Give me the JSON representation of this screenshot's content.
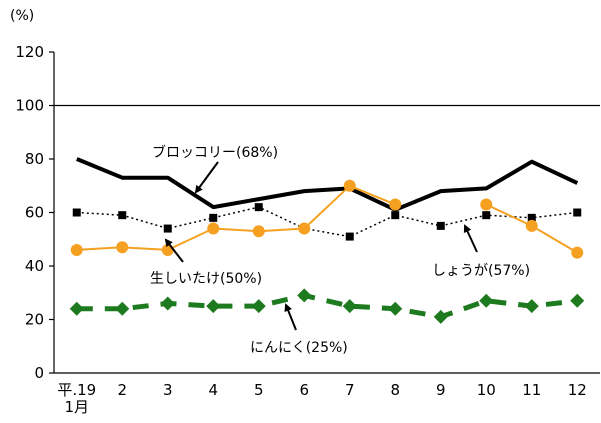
{
  "chart_data": {
    "type": "line",
    "unit_label": "(%)",
    "categories": [
      "平.19\n1月",
      "2",
      "3",
      "4",
      "5",
      "6",
      "7",
      "8",
      "9",
      "10",
      "11",
      "12"
    ],
    "ylim": [
      0,
      120
    ],
    "yticks": [
      0,
      20,
      40,
      60,
      80,
      100,
      120
    ],
    "reference_line": 100,
    "series": [
      {
        "name": "ブロッコリー(68%)",
        "color": "#000000",
        "style": "solid-thick",
        "marker": "none",
        "values": [
          80,
          73,
          73,
          62,
          65,
          68,
          69,
          61,
          68,
          69,
          79,
          71
        ]
      },
      {
        "name": "しょうが(57%)",
        "color": "#000000",
        "style": "dotted",
        "marker": "square",
        "values": [
          60,
          59,
          54,
          58,
          62,
          54,
          51,
          59,
          55,
          59,
          58,
          60
        ]
      },
      {
        "name": "生しいたけ(50%)",
        "color": "#f5a020",
        "style": "solid",
        "marker": "circle",
        "values": [
          46,
          47,
          46,
          54,
          53,
          54,
          70,
          63,
          null,
          63,
          55,
          45
        ]
      },
      {
        "name": "にんにく(25%)",
        "color": "#1e7a1e",
        "style": "dashed-thick",
        "marker": "diamond",
        "values": [
          24,
          24,
          26,
          25,
          25,
          29,
          25,
          24,
          21,
          27,
          25,
          27
        ]
      }
    ],
    "annotations": [
      {
        "text": "ブロッコリー(68%)",
        "series": 0
      },
      {
        "text": "生しいたけ(50%)",
        "series": 2
      },
      {
        "text": "しょうが(57%)",
        "series": 1
      },
      {
        "text": "にんにく(25%)",
        "series": 3
      }
    ]
  }
}
